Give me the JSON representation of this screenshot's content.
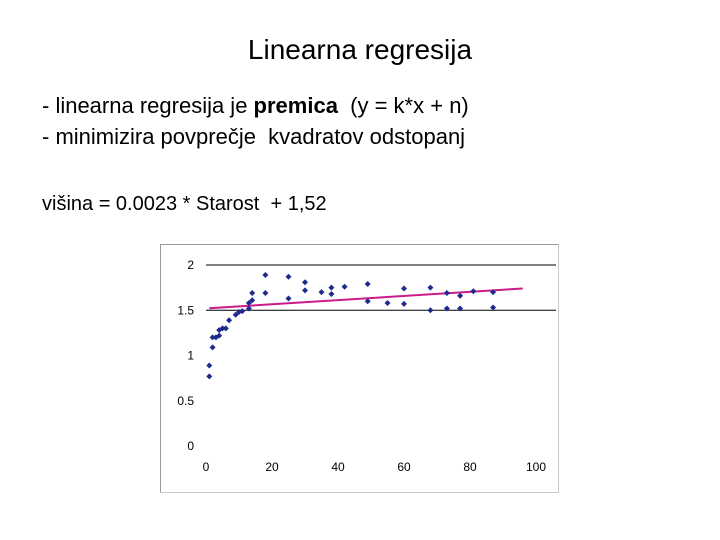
{
  "slide": {
    "title": "Linearna regresija",
    "bullets": [
      {
        "pre": "- linearna regresija je ",
        "emph": "premica",
        "post": "  (y = k*x + n)"
      },
      {
        "pre": "- minimizira povprečje  kvadratov odstopanj",
        "emph": "",
        "post": ""
      }
    ],
    "formula": "višina = 0.0023 * Starost  + 1,52"
  },
  "chart_data": {
    "type": "scatter",
    "xlim": [
      0,
      100
    ],
    "ylim": [
      0,
      2
    ],
    "x_ticks": [
      "0",
      "20",
      "40",
      "60",
      "80",
      "100"
    ],
    "y_ticks": [
      "0",
      "0.5",
      "1",
      "1.5",
      "2"
    ],
    "grid": "horizontal",
    "points": [
      {
        "x": 1,
        "y": 0.77
      },
      {
        "x": 1,
        "y": 0.89
      },
      {
        "x": 2,
        "y": 1.09
      },
      {
        "x": 2,
        "y": 1.2
      },
      {
        "x": 3,
        "y": 1.2
      },
      {
        "x": 4,
        "y": 1.22
      },
      {
        "x": 4,
        "y": 1.28
      },
      {
        "x": 5,
        "y": 1.3
      },
      {
        "x": 6,
        "y": 1.3
      },
      {
        "x": 7,
        "y": 1.39
      },
      {
        "x": 9,
        "y": 1.45
      },
      {
        "x": 10,
        "y": 1.48
      },
      {
        "x": 11,
        "y": 1.49
      },
      {
        "x": 13,
        "y": 1.52
      },
      {
        "x": 13,
        "y": 1.58
      },
      {
        "x": 14,
        "y": 1.61
      },
      {
        "x": 14,
        "y": 1.69
      },
      {
        "x": 18,
        "y": 1.69
      },
      {
        "x": 18,
        "y": 1.89
      },
      {
        "x": 25,
        "y": 1.63
      },
      {
        "x": 25,
        "y": 1.87
      },
      {
        "x": 30,
        "y": 1.72
      },
      {
        "x": 30,
        "y": 1.81
      },
      {
        "x": 35,
        "y": 1.7
      },
      {
        "x": 38,
        "y": 1.68
      },
      {
        "x": 38,
        "y": 1.75
      },
      {
        "x": 42,
        "y": 1.76
      },
      {
        "x": 49,
        "y": 1.6
      },
      {
        "x": 49,
        "y": 1.79
      },
      {
        "x": 55,
        "y": 1.58
      },
      {
        "x": 60,
        "y": 1.57
      },
      {
        "x": 60,
        "y": 1.74
      },
      {
        "x": 68,
        "y": 1.5
      },
      {
        "x": 68,
        "y": 1.75
      },
      {
        "x": 73,
        "y": 1.69
      },
      {
        "x": 73,
        "y": 1.52
      },
      {
        "x": 77,
        "y": 1.66
      },
      {
        "x": 77,
        "y": 1.52
      },
      {
        "x": 81,
        "y": 1.71
      },
      {
        "x": 87,
        "y": 1.7
      },
      {
        "x": 87,
        "y": 1.53
      }
    ],
    "regression_line": {
      "slope": 0.0023,
      "intercept": 1.52,
      "x_range": [
        1,
        96
      ]
    },
    "colors": {
      "points": "#1f2a8c",
      "line": "#cc1b8a",
      "grid": "#000000"
    }
  }
}
